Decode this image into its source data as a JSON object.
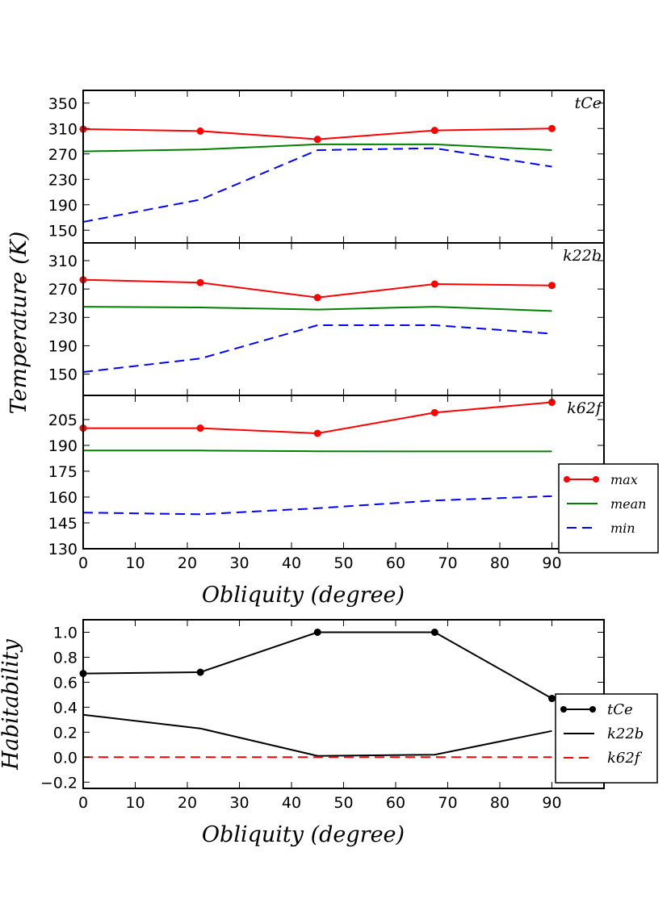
{
  "colors": {
    "max": "#ff0000",
    "mean": "#008000",
    "min": "#0000ff",
    "hab": "#000000",
    "k62f": "#ff0000"
  },
  "labels": {
    "temperature_ylabel": "Temperature (K)",
    "habitability_ylabel": "Habitability",
    "xlabel": "Obliquity (degree)"
  },
  "chart_data": [
    {
      "type": "line",
      "panel": "tCe",
      "title": "tCe",
      "xlim": [
        0,
        100
      ],
      "ylim": [
        130,
        370
      ],
      "yticks": [
        150,
        190,
        230,
        270,
        310,
        350
      ],
      "x": [
        0,
        22.5,
        45,
        67.5,
        90
      ],
      "series": [
        {
          "name": "max",
          "style": "solid-markers",
          "values": [
            309,
            306,
            293,
            307,
            310
          ]
        },
        {
          "name": "mean",
          "style": "solid",
          "values": [
            274,
            277,
            285,
            285,
            276
          ]
        },
        {
          "name": "min",
          "style": "dashed",
          "values": [
            163,
            198,
            276,
            279,
            250
          ]
        }
      ]
    },
    {
      "type": "line",
      "panel": "k22b",
      "title": "k22b",
      "ylim": [
        120,
        335
      ],
      "yticks": [
        150,
        190,
        230,
        270,
        310
      ],
      "x": [
        0,
        22.5,
        45,
        67.5,
        90
      ],
      "series": [
        {
          "name": "max",
          "style": "solid-markers",
          "values": [
            283,
            279,
            258,
            277,
            275
          ]
        },
        {
          "name": "mean",
          "style": "solid",
          "values": [
            245,
            244,
            241,
            245,
            239
          ]
        },
        {
          "name": "min",
          "style": "dashed",
          "values": [
            153,
            172,
            219,
            219,
            207
          ]
        }
      ]
    },
    {
      "type": "line",
      "panel": "k62f",
      "title": "k62f",
      "ylim": [
        130,
        219
      ],
      "yticks": [
        130,
        145,
        160,
        175,
        190,
        205
      ],
      "xticks": [
        0,
        10,
        20,
        30,
        40,
        50,
        60,
        70,
        80,
        90
      ],
      "xlabel": "Obliquity (degree)",
      "x": [
        0,
        22.5,
        45,
        67.5,
        90
      ],
      "series": [
        {
          "name": "max",
          "style": "solid-markers",
          "values": [
            200,
            200,
            197,
            209,
            215
          ]
        },
        {
          "name": "mean",
          "style": "solid",
          "values": [
            187,
            187,
            186.6,
            186.5,
            186.5
          ]
        },
        {
          "name": "min",
          "style": "dashed",
          "values": [
            151,
            150,
            153.5,
            158,
            160.5
          ]
        }
      ],
      "legend": {
        "placement": "right",
        "entries": [
          "max",
          "mean",
          "min"
        ]
      }
    },
    {
      "type": "line",
      "panel": "habitability",
      "xlim": [
        0,
        100
      ],
      "ylim": [
        -0.25,
        1.1
      ],
      "yticks": [
        -0.2,
        0.0,
        0.2,
        0.4,
        0.6,
        0.8,
        1.0
      ],
      "xticks": [
        0,
        10,
        20,
        30,
        40,
        50,
        60,
        70,
        80,
        90
      ],
      "xlabel": "Obliquity (degree)",
      "ylabel": "Habitability",
      "x": [
        0,
        22.5,
        45,
        67.5,
        90
      ],
      "series": [
        {
          "name": "tCe",
          "style": "solid-markers",
          "values": [
            0.67,
            0.68,
            1.0,
            1.0,
            0.47
          ]
        },
        {
          "name": "k22b",
          "style": "solid",
          "values": [
            0.34,
            0.23,
            0.01,
            0.02,
            0.21
          ]
        },
        {
          "name": "k62f",
          "style": "dashed",
          "values": [
            0.0,
            0.0,
            0.0,
            0.0,
            0.0
          ]
        }
      ],
      "legend": {
        "placement": "right",
        "entries": [
          "tCe",
          "k22b",
          "k62f"
        ]
      }
    }
  ]
}
